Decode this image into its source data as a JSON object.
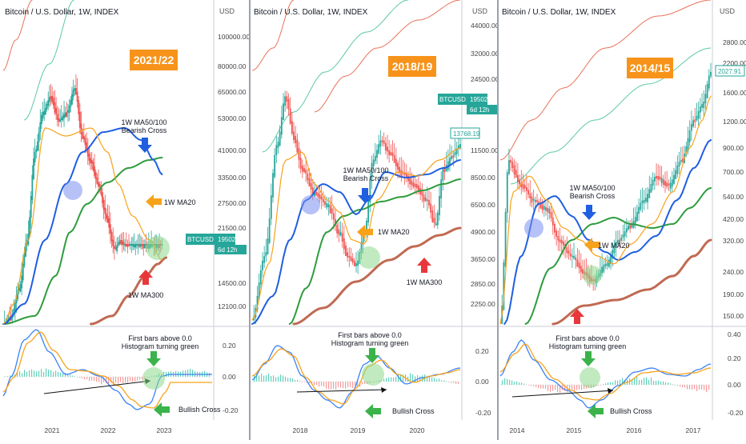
{
  "chart_data": [
    {
      "type": "line",
      "title": "Bitcoin / U.S. Dollar, 1W, INDEX",
      "cycle_label": "2021/22",
      "currency_label": "USD",
      "y_scale": "log",
      "y_ticks": [
        "100000.00",
        "80000.00",
        "65000.00",
        "53000.00",
        "41000.00",
        "33500.00",
        "27500.00",
        "21500.00",
        "14500.00",
        "12100.00"
      ],
      "x_ticks": [
        "2021",
        "2022",
        "2023"
      ],
      "price_tag": {
        "name": "BTCUSD",
        "value": "19502.24",
        "countdown": "6d 12h"
      },
      "annotations": [
        {
          "text": "1W MA50/100",
          "text2": "Bearish Cross",
          "arrow": "blue-down"
        },
        {
          "text": "1W MA20",
          "arrow": "orange-left"
        },
        {
          "text": "1W MA300",
          "arrow": "red-up"
        }
      ],
      "macd": {
        "y_ticks": [
          "0.20",
          "0.00",
          "-0.20"
        ],
        "annotations": [
          {
            "text": "First bars above 0.0",
            "text2": "Histogram turning green",
            "arrow": "green-down"
          },
          {
            "text": "Bullish Cross",
            "arrow": "green-left"
          }
        ]
      },
      "grid": false,
      "series_colors": {
        "price_up": "#26a69a",
        "price_down": "#ef5350",
        "ma20": "#f7a21b",
        "ma50": "#1f5fe0",
        "ma100": "#2e9c3c",
        "ma300": "#c06a52",
        "macd": "#3b82f6",
        "signal": "#f7a21b"
      }
    },
    {
      "type": "line",
      "title": "Bitcoin / U.S. Dollar, 1W, INDEX",
      "cycle_label": "2018/19",
      "currency_label": "USD",
      "y_scale": "log",
      "y_ticks": [
        "44000.00",
        "32000.00",
        "24500.00",
        "11500.00",
        "8500.00",
        "6500.00",
        "4900.00",
        "3650.00",
        "2850.00",
        "2250.00"
      ],
      "x_ticks": [
        "2018",
        "2019",
        "2020"
      ],
      "price_tag": {
        "name": "BTCUSD",
        "value": "19502.24",
        "countdown": "6d 12h"
      },
      "last_price_tag": "13768.19",
      "annotations": [
        {
          "text": "1W MA50/100",
          "text2": "Bearish Cross",
          "arrow": "blue-down"
        },
        {
          "text": "1W MA20",
          "arrow": "orange-left"
        },
        {
          "text": "1W MA300",
          "arrow": "red-up"
        }
      ],
      "macd": {
        "y_ticks": [
          "0.20",
          "0.00",
          "-0.20"
        ],
        "annotations": [
          {
            "text": "First bars above 0.0",
            "text2": "Histogram turning green",
            "arrow": "green-down"
          },
          {
            "text": "Bullish Cross",
            "arrow": "green-left"
          }
        ]
      },
      "grid": false,
      "series_colors": {
        "price_up": "#26a69a",
        "price_down": "#ef5350",
        "ma20": "#f7a21b",
        "ma50": "#1f5fe0",
        "ma100": "#2e9c3c",
        "ma300": "#c06a52",
        "macd": "#3b82f6",
        "signal": "#f7a21b"
      }
    },
    {
      "type": "line",
      "title": "Bitcoin / U.S. Dollar, 1W, INDEX",
      "cycle_label": "2014/15",
      "currency_label": "USD",
      "y_scale": "log",
      "y_ticks": [
        "2800.00",
        "2200.00",
        "1600.00",
        "1200.00",
        "900.00",
        "700.00",
        "540.00",
        "420.00",
        "320.00",
        "240.00",
        "190.00",
        "150.00"
      ],
      "x_ticks": [
        "2014",
        "2015",
        "2016",
        "2017"
      ],
      "last_price_tag": "2027.91",
      "annotations": [
        {
          "text": "1W MA50/100",
          "text2": "Bearish Cross",
          "arrow": "blue-down"
        },
        {
          "text": "1W MA20",
          "arrow": "orange-left"
        },
        {
          "text": "",
          "arrow": "red-up"
        }
      ],
      "macd": {
        "y_ticks": [
          "0.40",
          "0.20",
          "0.00",
          "-0.20"
        ],
        "annotations": [
          {
            "text": "First bars above 0.0",
            "text2": "Histogram turning green",
            "arrow": "green-down"
          },
          {
            "text": "Bullish Cross",
            "arrow": "green-left"
          }
        ]
      },
      "grid": false,
      "series_colors": {
        "price_up": "#26a69a",
        "price_down": "#ef5350",
        "ma20": "#f7a21b",
        "ma50": "#1f5fe0",
        "ma100": "#2e9c3c",
        "ma300": "#c06a52",
        "macd": "#3b82f6",
        "signal": "#f7a21b"
      }
    }
  ]
}
